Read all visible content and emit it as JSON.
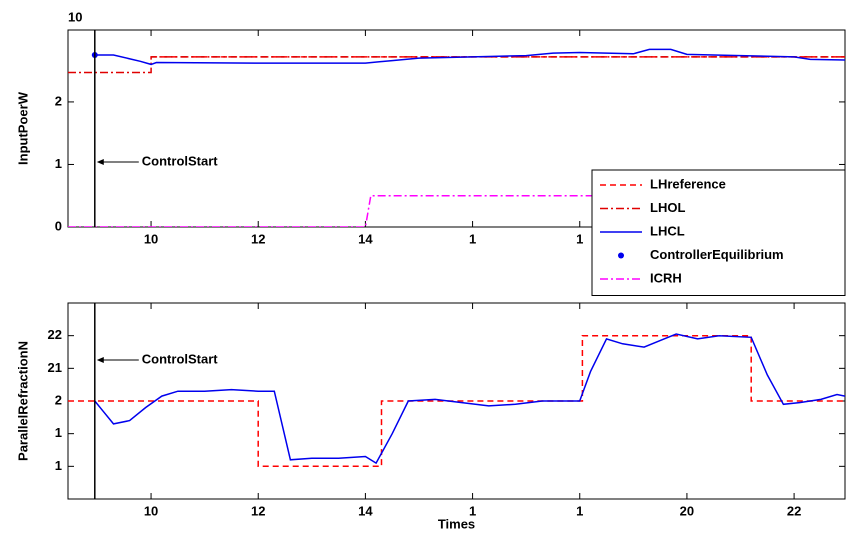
{
  "chart_data": [
    {
      "type": "line",
      "ylabel": "InputPoerW",
      "y_multiplier": "10",
      "annotation": "ControlStart",
      "vline_x": 8.95,
      "xlim": [
        8.45,
        22.95
      ],
      "ylim": [
        0,
        3.15
      ],
      "xticks": [
        10,
        12,
        14,
        {
          "value": 16,
          "label": "1"
        },
        {
          "value": 18,
          "label": "1"
        }
      ],
      "yticks": [
        0,
        1,
        2
      ],
      "legend": "lower right",
      "series": [
        {
          "name": "LHreference",
          "color": "#ff0000",
          "style": "dashed",
          "x": [
            10,
            22.95
          ],
          "values": [
            2.72,
            2.72
          ]
        },
        {
          "name": "LHOL",
          "color": "#e00000",
          "style": "dashdot",
          "x": [
            8.45,
            10,
            10,
            22.95
          ],
          "values": [
            2.47,
            2.47,
            2.72,
            2.72
          ]
        },
        {
          "name": "LHCL",
          "color": "#0000ee",
          "style": "solid",
          "x": [
            8.95,
            9.3,
            9.8,
            10,
            10.1,
            12,
            14,
            14.5,
            15,
            16,
            17,
            17.5,
            18,
            18.5,
            19,
            19.3,
            19.7,
            20,
            21,
            22,
            22.3,
            22.95
          ],
          "values": [
            2.75,
            2.75,
            2.65,
            2.6,
            2.63,
            2.62,
            2.62,
            2.66,
            2.7,
            2.72,
            2.74,
            2.78,
            2.79,
            2.78,
            2.77,
            2.84,
            2.84,
            2.76,
            2.74,
            2.72,
            2.68,
            2.67
          ]
        },
        {
          "name": "ControllerEquilibrium",
          "color": "#0000ee",
          "style": "marker",
          "x": [
            8.95
          ],
          "values": [
            2.75
          ]
        },
        {
          "name": "ICRH",
          "color": "#ff00ff",
          "style": "dashdot",
          "x": [
            8.45,
            14.0,
            14.1,
            19.05,
            19.15,
            22.95
          ],
          "values": [
            0,
            0,
            0.5,
            0.5,
            0,
            0
          ]
        }
      ]
    },
    {
      "type": "line",
      "ylabel": "ParallelRefractionN",
      "xlabel": "Times",
      "annotation": "ControlStart",
      "vline_x": 8.95,
      "xlim": [
        8.45,
        22.95
      ],
      "ylim": [
        17,
        23
      ],
      "xticks": [
        10,
        12,
        14,
        {
          "value": 16,
          "label": "1"
        },
        {
          "value": 18,
          "label": "1"
        },
        20,
        22
      ],
      "yticks": [
        {
          "value": 18,
          "label": "1"
        },
        {
          "value": 19,
          "label": "1"
        },
        {
          "value": 20,
          "label": "2"
        },
        21,
        22
      ],
      "series": [
        {
          "color": "#ff0000",
          "style": "dashed",
          "x": [
            8.45,
            12,
            12,
            14.3,
            14.3,
            18.05,
            18.05,
            21.2,
            21.2,
            22.95
          ],
          "values": [
            20,
            20,
            18,
            18,
            20,
            20,
            22,
            22,
            20,
            20
          ]
        },
        {
          "color": "#0000ee",
          "style": "solid",
          "x": [
            8.95,
            9.1,
            9.3,
            9.6,
            9.9,
            10.2,
            10.5,
            11,
            11.5,
            12,
            12.3,
            12.6,
            13,
            13.5,
            14,
            14.2,
            14.5,
            14.8,
            15.3,
            15.8,
            16.3,
            16.8,
            17.3,
            18,
            18.2,
            18.5,
            18.8,
            19.2,
            19.5,
            19.8,
            20.2,
            20.6,
            21.2,
            21.5,
            21.8,
            22.1,
            22.5,
            22.8,
            22.95
          ],
          "values": [
            20,
            19.7,
            19.3,
            19.4,
            19.8,
            20.15,
            20.3,
            20.3,
            20.35,
            20.3,
            20.3,
            18.2,
            18.25,
            18.25,
            18.3,
            18.1,
            19,
            20,
            20.05,
            19.95,
            19.85,
            19.9,
            20.0,
            20,
            20.9,
            21.9,
            21.75,
            21.65,
            21.85,
            22.05,
            21.9,
            22.0,
            21.95,
            20.8,
            19.9,
            19.95,
            20.05,
            20.2,
            20.15
          ]
        }
      ]
    }
  ]
}
